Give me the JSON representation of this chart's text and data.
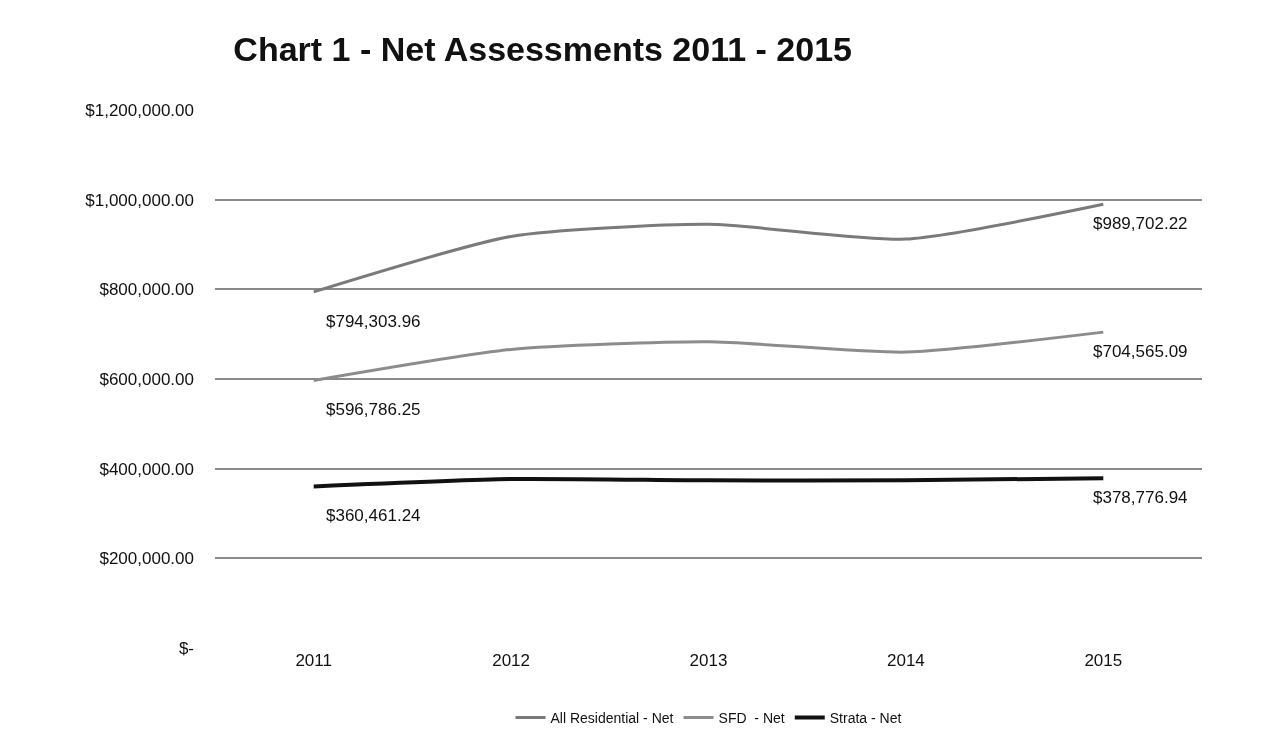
{
  "chart_data": {
    "type": "line",
    "title": "Chart 1 - Net Assessments 2011 - 2015",
    "categories": [
      "2011",
      "2012",
      "2013",
      "2014",
      "2015"
    ],
    "series": [
      {
        "name": "All Residential - Net",
        "color": "#7a7a7a",
        "values": [
          794303.96,
          918000,
          945000,
          912000,
          989702.22
        ],
        "value_labels": [
          "$794,303.96",
          null,
          null,
          null,
          "$989,702.22"
        ]
      },
      {
        "name": "SFD  - Net",
        "color": "#8c8c8c",
        "values": [
          596786.25,
          666000,
          683000,
          660000,
          704565.09
        ],
        "value_labels": [
          "$596,786.25",
          null,
          null,
          null,
          "$704,565.09"
        ]
      },
      {
        "name": "Strata - Net",
        "color": "#111111",
        "values": [
          360461.24,
          377000,
          374000,
          374000,
          378776.94
        ],
        "value_labels": [
          "$360,461.24",
          null,
          null,
          null,
          "$378,776.94"
        ]
      }
    ],
    "ylim": [
      0,
      1200000
    ],
    "yticks": [
      {
        "value": 0,
        "label": "$-"
      },
      {
        "value": 200000,
        "label": "$200,000.00"
      },
      {
        "value": 400000,
        "label": "$400,000.00"
      },
      {
        "value": 600000,
        "label": "$600,000.00"
      },
      {
        "value": 800000,
        "label": "$800,000.00"
      },
      {
        "value": 1000000,
        "label": "$1,000,000.00"
      },
      {
        "value": 1200000,
        "label": "$1,200,000.00"
      }
    ],
    "grid": "y",
    "legend": "bottom",
    "marker": "none",
    "line_style": "solid"
  }
}
